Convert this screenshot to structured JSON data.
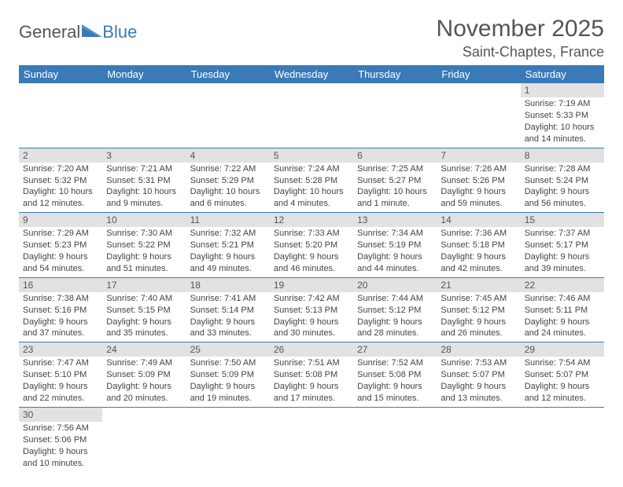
{
  "brand": {
    "part1": "General",
    "part2": "Blue"
  },
  "title": "November 2025",
  "location": "Saint-Chaptes, France",
  "colors": {
    "header_bg": "#3a7ab8",
    "header_fg": "#ffffff",
    "daynum_bg": "#e2e2e2",
    "rule": "#3a7ab8",
    "text": "#444444",
    "title": "#555555"
  },
  "weekdays": [
    "Sunday",
    "Monday",
    "Tuesday",
    "Wednesday",
    "Thursday",
    "Friday",
    "Saturday"
  ],
  "weeks": [
    [
      null,
      null,
      null,
      null,
      null,
      null,
      {
        "n": "1",
        "sr": "Sunrise: 7:19 AM",
        "ss": "Sunset: 5:33 PM",
        "dl": "Daylight: 10 hours and 14 minutes."
      }
    ],
    [
      {
        "n": "2",
        "sr": "Sunrise: 7:20 AM",
        "ss": "Sunset: 5:32 PM",
        "dl": "Daylight: 10 hours and 12 minutes."
      },
      {
        "n": "3",
        "sr": "Sunrise: 7:21 AM",
        "ss": "Sunset: 5:31 PM",
        "dl": "Daylight: 10 hours and 9 minutes."
      },
      {
        "n": "4",
        "sr": "Sunrise: 7:22 AM",
        "ss": "Sunset: 5:29 PM",
        "dl": "Daylight: 10 hours and 6 minutes."
      },
      {
        "n": "5",
        "sr": "Sunrise: 7:24 AM",
        "ss": "Sunset: 5:28 PM",
        "dl": "Daylight: 10 hours and 4 minutes."
      },
      {
        "n": "6",
        "sr": "Sunrise: 7:25 AM",
        "ss": "Sunset: 5:27 PM",
        "dl": "Daylight: 10 hours and 1 minute."
      },
      {
        "n": "7",
        "sr": "Sunrise: 7:26 AM",
        "ss": "Sunset: 5:26 PM",
        "dl": "Daylight: 9 hours and 59 minutes."
      },
      {
        "n": "8",
        "sr": "Sunrise: 7:28 AM",
        "ss": "Sunset: 5:24 PM",
        "dl": "Daylight: 9 hours and 56 minutes."
      }
    ],
    [
      {
        "n": "9",
        "sr": "Sunrise: 7:29 AM",
        "ss": "Sunset: 5:23 PM",
        "dl": "Daylight: 9 hours and 54 minutes."
      },
      {
        "n": "10",
        "sr": "Sunrise: 7:30 AM",
        "ss": "Sunset: 5:22 PM",
        "dl": "Daylight: 9 hours and 51 minutes."
      },
      {
        "n": "11",
        "sr": "Sunrise: 7:32 AM",
        "ss": "Sunset: 5:21 PM",
        "dl": "Daylight: 9 hours and 49 minutes."
      },
      {
        "n": "12",
        "sr": "Sunrise: 7:33 AM",
        "ss": "Sunset: 5:20 PM",
        "dl": "Daylight: 9 hours and 46 minutes."
      },
      {
        "n": "13",
        "sr": "Sunrise: 7:34 AM",
        "ss": "Sunset: 5:19 PM",
        "dl": "Daylight: 9 hours and 44 minutes."
      },
      {
        "n": "14",
        "sr": "Sunrise: 7:36 AM",
        "ss": "Sunset: 5:18 PM",
        "dl": "Daylight: 9 hours and 42 minutes."
      },
      {
        "n": "15",
        "sr": "Sunrise: 7:37 AM",
        "ss": "Sunset: 5:17 PM",
        "dl": "Daylight: 9 hours and 39 minutes."
      }
    ],
    [
      {
        "n": "16",
        "sr": "Sunrise: 7:38 AM",
        "ss": "Sunset: 5:16 PM",
        "dl": "Daylight: 9 hours and 37 minutes."
      },
      {
        "n": "17",
        "sr": "Sunrise: 7:40 AM",
        "ss": "Sunset: 5:15 PM",
        "dl": "Daylight: 9 hours and 35 minutes."
      },
      {
        "n": "18",
        "sr": "Sunrise: 7:41 AM",
        "ss": "Sunset: 5:14 PM",
        "dl": "Daylight: 9 hours and 33 minutes."
      },
      {
        "n": "19",
        "sr": "Sunrise: 7:42 AM",
        "ss": "Sunset: 5:13 PM",
        "dl": "Daylight: 9 hours and 30 minutes."
      },
      {
        "n": "20",
        "sr": "Sunrise: 7:44 AM",
        "ss": "Sunset: 5:12 PM",
        "dl": "Daylight: 9 hours and 28 minutes."
      },
      {
        "n": "21",
        "sr": "Sunrise: 7:45 AM",
        "ss": "Sunset: 5:12 PM",
        "dl": "Daylight: 9 hours and 26 minutes."
      },
      {
        "n": "22",
        "sr": "Sunrise: 7:46 AM",
        "ss": "Sunset: 5:11 PM",
        "dl": "Daylight: 9 hours and 24 minutes."
      }
    ],
    [
      {
        "n": "23",
        "sr": "Sunrise: 7:47 AM",
        "ss": "Sunset: 5:10 PM",
        "dl": "Daylight: 9 hours and 22 minutes."
      },
      {
        "n": "24",
        "sr": "Sunrise: 7:49 AM",
        "ss": "Sunset: 5:09 PM",
        "dl": "Daylight: 9 hours and 20 minutes."
      },
      {
        "n": "25",
        "sr": "Sunrise: 7:50 AM",
        "ss": "Sunset: 5:09 PM",
        "dl": "Daylight: 9 hours and 19 minutes."
      },
      {
        "n": "26",
        "sr": "Sunrise: 7:51 AM",
        "ss": "Sunset: 5:08 PM",
        "dl": "Daylight: 9 hours and 17 minutes."
      },
      {
        "n": "27",
        "sr": "Sunrise: 7:52 AM",
        "ss": "Sunset: 5:08 PM",
        "dl": "Daylight: 9 hours and 15 minutes."
      },
      {
        "n": "28",
        "sr": "Sunrise: 7:53 AM",
        "ss": "Sunset: 5:07 PM",
        "dl": "Daylight: 9 hours and 13 minutes."
      },
      {
        "n": "29",
        "sr": "Sunrise: 7:54 AM",
        "ss": "Sunset: 5:07 PM",
        "dl": "Daylight: 9 hours and 12 minutes."
      }
    ],
    [
      {
        "n": "30",
        "sr": "Sunrise: 7:56 AM",
        "ss": "Sunset: 5:06 PM",
        "dl": "Daylight: 9 hours and 10 minutes."
      },
      null,
      null,
      null,
      null,
      null,
      null
    ]
  ]
}
